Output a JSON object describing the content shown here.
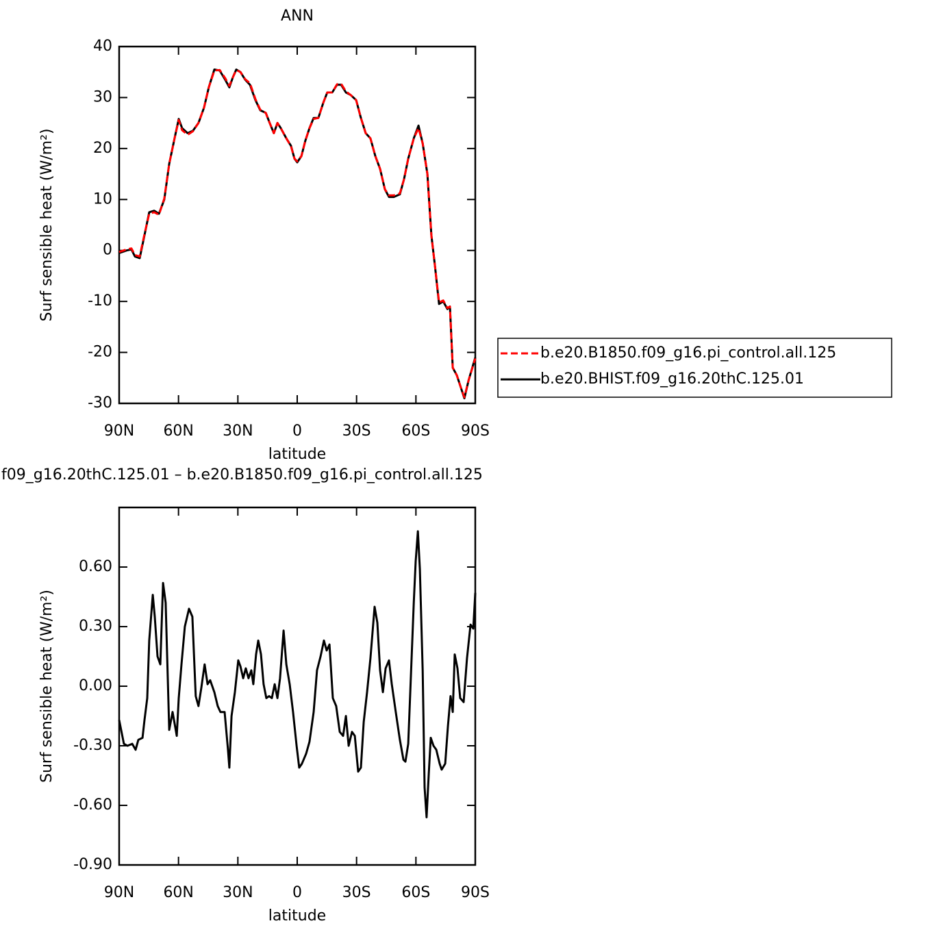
{
  "chart_data": [
    {
      "type": "line",
      "title": "ANN",
      "xlabel": "latitude",
      "ylabel": "Surf sensible heat (W/m²)",
      "xlim": [
        90,
        -90
      ],
      "ylim": [
        -30,
        40
      ],
      "xticks": [
        {
          "value": 90,
          "label": "90N"
        },
        {
          "value": 60,
          "label": "60N"
        },
        {
          "value": 30,
          "label": "30N"
        },
        0,
        {
          "value": -30,
          "label": "30S"
        },
        {
          "value": -60,
          "label": "60S"
        },
        {
          "value": -90,
          "label": "90S"
        }
      ],
      "yticks": [
        -30,
        -20,
        -10,
        0,
        10,
        20,
        30,
        40
      ],
      "legend": "right",
      "x": [
        90,
        86.2,
        83.8,
        82.0,
        79.6,
        77.2,
        74.8,
        72.3,
        69.9,
        67.2,
        64.7,
        62.0,
        59.9,
        58.2,
        55.4,
        52.7,
        49.9,
        47.1,
        44.7,
        41.9,
        39.2,
        36.4,
        34.3,
        32.5,
        30.8,
        28.7,
        26.3,
        23.9,
        21.1,
        18.7,
        15.9,
        13.9,
        11.8,
        10.0,
        8.3,
        5.5,
        3.1,
        1.4,
        0.0,
        -2.1,
        -4.1,
        -6.2,
        -8.3,
        -10.7,
        -13.2,
        -15.2,
        -17.7,
        -20.1,
        -22.2,
        -24.6,
        -27.0,
        -29.8,
        -32.2,
        -34.6,
        -37.0,
        -39.5,
        -41.9,
        -44.3,
        -46.4,
        -48.8,
        -51.9,
        -54.0,
        -56.1,
        -58.9,
        -61.3,
        -63.4,
        -65.8,
        -67.8,
        -69.6,
        -71.7,
        -73.8,
        -75.9,
        -77.2,
        -78.6,
        -80.7,
        -82.8,
        -84.5,
        -86.6,
        -90
      ],
      "series": [
        {
          "name": "b.e20.BHIST.f09_g16.20thC.125.01",
          "color": "#000000",
          "dashed": false,
          "values": [
            -0.5,
            0,
            0.2,
            -1.2,
            -1.5,
            3,
            7.5,
            7.8,
            7.2,
            10,
            17,
            22,
            25.8,
            24,
            23,
            23.5,
            25,
            28,
            32,
            35.5,
            35.3,
            33.5,
            32,
            34,
            35.5,
            35,
            33.5,
            32.5,
            29.5,
            27.5,
            27,
            25,
            23,
            25,
            24,
            22,
            20.5,
            18,
            17.3,
            18.5,
            21.5,
            24,
            26,
            26,
            29,
            31,
            31,
            32.5,
            32.5,
            31,
            30.5,
            29.5,
            26,
            23,
            22,
            18.5,
            16,
            12,
            10.5,
            10.5,
            11,
            14,
            18,
            22,
            24.5,
            21,
            15,
            3,
            -3,
            -10.5,
            -10,
            -11.5,
            -11,
            -23,
            -24.5,
            -27,
            -29,
            -25.5,
            -21
          ]
        },
        {
          "name": "b.e20.B1850.f09_g16.pi_control.all.125",
          "color": "#ff0000",
          "dashed": true,
          "values": [
            -0.3,
            0.2,
            0.4,
            -0.9,
            -1.2,
            3.2,
            7.2,
            7.5,
            7.0,
            10.2,
            17,
            22,
            25.6,
            23.6,
            22.7,
            23.4,
            25,
            28,
            32,
            35.3,
            35.4,
            33.8,
            32.3,
            34,
            35.4,
            35,
            33.6,
            32.8,
            29.7,
            27.6,
            27,
            25,
            23,
            25,
            24,
            22,
            20.4,
            18,
            17.5,
            18.5,
            21.5,
            24,
            25.8,
            26,
            29,
            31,
            31,
            32.6,
            32.7,
            31.2,
            30.5,
            29.5,
            26,
            23,
            22,
            18.5,
            16,
            12,
            10.8,
            10.8,
            11.2,
            14,
            18,
            22,
            24,
            21,
            15,
            3,
            -3,
            -10.2,
            -9.8,
            -11.3,
            -11,
            -23,
            -24.5,
            -27,
            -28.8,
            -25.5,
            -21.2
          ]
        }
      ]
    },
    {
      "type": "line",
      "title": "f09_g16.20thC.125.01 – b.e20.B1850.f09_g16.pi_control.all.125",
      "xlabel": "latitude",
      "ylabel": "Surf sensible heat (W/m²)",
      "xlim": [
        90,
        -90
      ],
      "ylim": [
        -0.9,
        0.9
      ],
      "xticks": [
        {
          "value": 90,
          "label": "90N"
        },
        {
          "value": 60,
          "label": "60N"
        },
        {
          "value": 30,
          "label": "30N"
        },
        0,
        {
          "value": -30,
          "label": "30S"
        },
        {
          "value": -60,
          "label": "60S"
        },
        {
          "value": -90,
          "label": "90S"
        }
      ],
      "yticks": [
        {
          "value": -0.9,
          "label": "-0.90"
        },
        {
          "value": -0.6,
          "label": "-0.60"
        },
        {
          "value": -0.3,
          "label": "-0.30"
        },
        {
          "value": 0,
          "label": "0.00"
        },
        {
          "value": 0.3,
          "label": "0.30"
        },
        {
          "value": 0.6,
          "label": "0.60"
        }
      ],
      "x": [
        90,
        87.6,
        85.8,
        83.4,
        81.7,
        80.3,
        78.2,
        77.2,
        75.8,
        74.8,
        73.0,
        72.0,
        70.6,
        69.2,
        67.8,
        66.5,
        64.7,
        63.0,
        60.9,
        59.9,
        58.5,
        56.8,
        54.7,
        53.0,
        51.3,
        49.9,
        48.5,
        46.8,
        45.3,
        44.0,
        41.9,
        40.2,
        38.8,
        36.7,
        35.0,
        34.3,
        33.2,
        31.5,
        29.8,
        28.7,
        27.3,
        26.0,
        24.6,
        23.2,
        22.2,
        20.8,
        19.7,
        18.3,
        17.0,
        15.6,
        14.2,
        12.8,
        11.4,
        10.0,
        8.7,
        6.9,
        5.5,
        3.8,
        2.1,
        0.3,
        -1.0,
        -2.4,
        -4.5,
        -6.2,
        -8.3,
        -10.0,
        -11.8,
        -13.5,
        -14.9,
        -16.3,
        -18.0,
        -19.7,
        -21.5,
        -23.2,
        -24.6,
        -26.0,
        -27.7,
        -29.1,
        -30.8,
        -32.2,
        -33.6,
        -35.3,
        -37.0,
        -39.1,
        -40.5,
        -41.9,
        -43.3,
        -44.7,
        -46.4,
        -47.8,
        -49.8,
        -51.9,
        -53.7,
        -54.7,
        -56.1,
        -57.5,
        -58.9,
        -59.9,
        -61.0,
        -62.0,
        -63.4,
        -64.4,
        -65.4,
        -66.5,
        -67.5,
        -68.9,
        -70.3,
        -72.0,
        -73.0,
        -74.8,
        -76.2,
        -77.5,
        -78.6,
        -79.6,
        -81.0,
        -82.4,
        -84.1,
        -85.8,
        -87.6,
        -89.0,
        -90
      ],
      "series": [
        {
          "color": "#000000",
          "dashed": false,
          "values": [
            -0.17,
            -0.29,
            -0.3,
            -0.29,
            -0.32,
            -0.27,
            -0.26,
            -0.17,
            -0.06,
            0.23,
            0.46,
            0.35,
            0.15,
            0.11,
            0.52,
            0.42,
            -0.22,
            -0.13,
            -0.25,
            -0.06,
            0.11,
            0.3,
            0.39,
            0.35,
            -0.05,
            -0.1,
            -0.01,
            0.11,
            0.01,
            0.03,
            -0.03,
            -0.1,
            -0.13,
            -0.13,
            -0.32,
            -0.41,
            -0.15,
            -0.03,
            0.13,
            0.1,
            0.04,
            0.09,
            0.04,
            0.08,
            0.01,
            0.16,
            0.23,
            0.16,
            0.01,
            -0.06,
            -0.05,
            -0.06,
            0.01,
            -0.06,
            0.04,
            0.28,
            0.11,
            0.01,
            -0.13,
            -0.3,
            -0.41,
            -0.39,
            -0.34,
            -0.28,
            -0.13,
            0.08,
            0.15,
            0.23,
            0.18,
            0.21,
            -0.06,
            -0.1,
            -0.23,
            -0.25,
            -0.15,
            -0.3,
            -0.23,
            -0.25,
            -0.43,
            -0.41,
            -0.18,
            -0.03,
            0.14,
            0.4,
            0.32,
            0.08,
            -0.03,
            0.09,
            0.13,
            0.01,
            -0.13,
            -0.27,
            -0.37,
            -0.38,
            -0.29,
            0.06,
            0.42,
            0.63,
            0.78,
            0.59,
            0.08,
            -0.51,
            -0.66,
            -0.44,
            -0.26,
            -0.3,
            -0.32,
            -0.39,
            -0.42,
            -0.39,
            -0.2,
            -0.05,
            -0.13,
            0.16,
            0.09,
            -0.06,
            -0.08,
            0.14,
            0.31,
            0.29,
            0.47
          ]
        }
      ]
    }
  ]
}
